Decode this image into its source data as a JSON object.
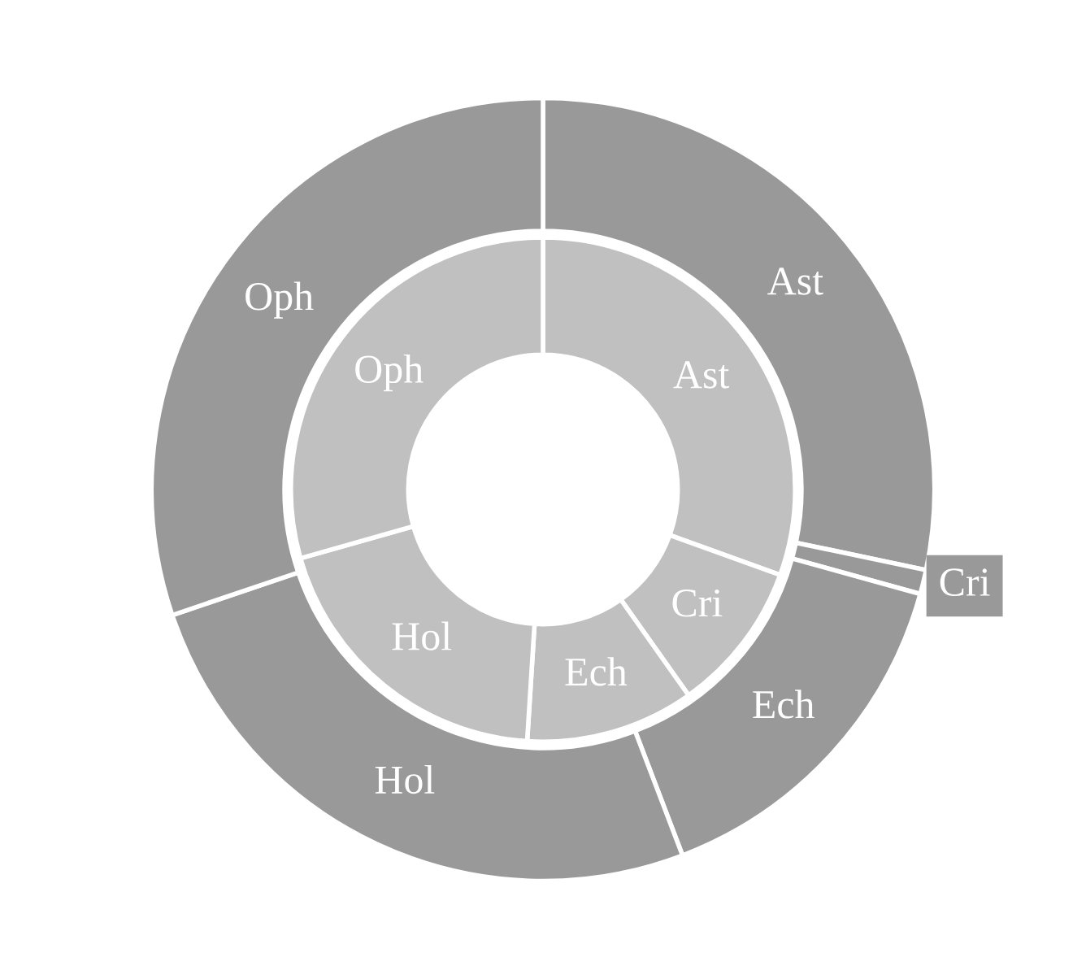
{
  "chart_data": {
    "type": "donut",
    "categories": [
      "Ast",
      "Cri",
      "Ech",
      "Hol",
      "Oph"
    ],
    "series": [
      {
        "color": "#c0c0c0",
        "values": [
          30.5,
          9.7,
          10.8,
          19.6,
          29.4
        ]
      },
      {
        "color": "#999999",
        "values": [
          28.3,
          1.0,
          14.9,
          25.6,
          30.2
        ]
      }
    ],
    "legend": false
  }
}
